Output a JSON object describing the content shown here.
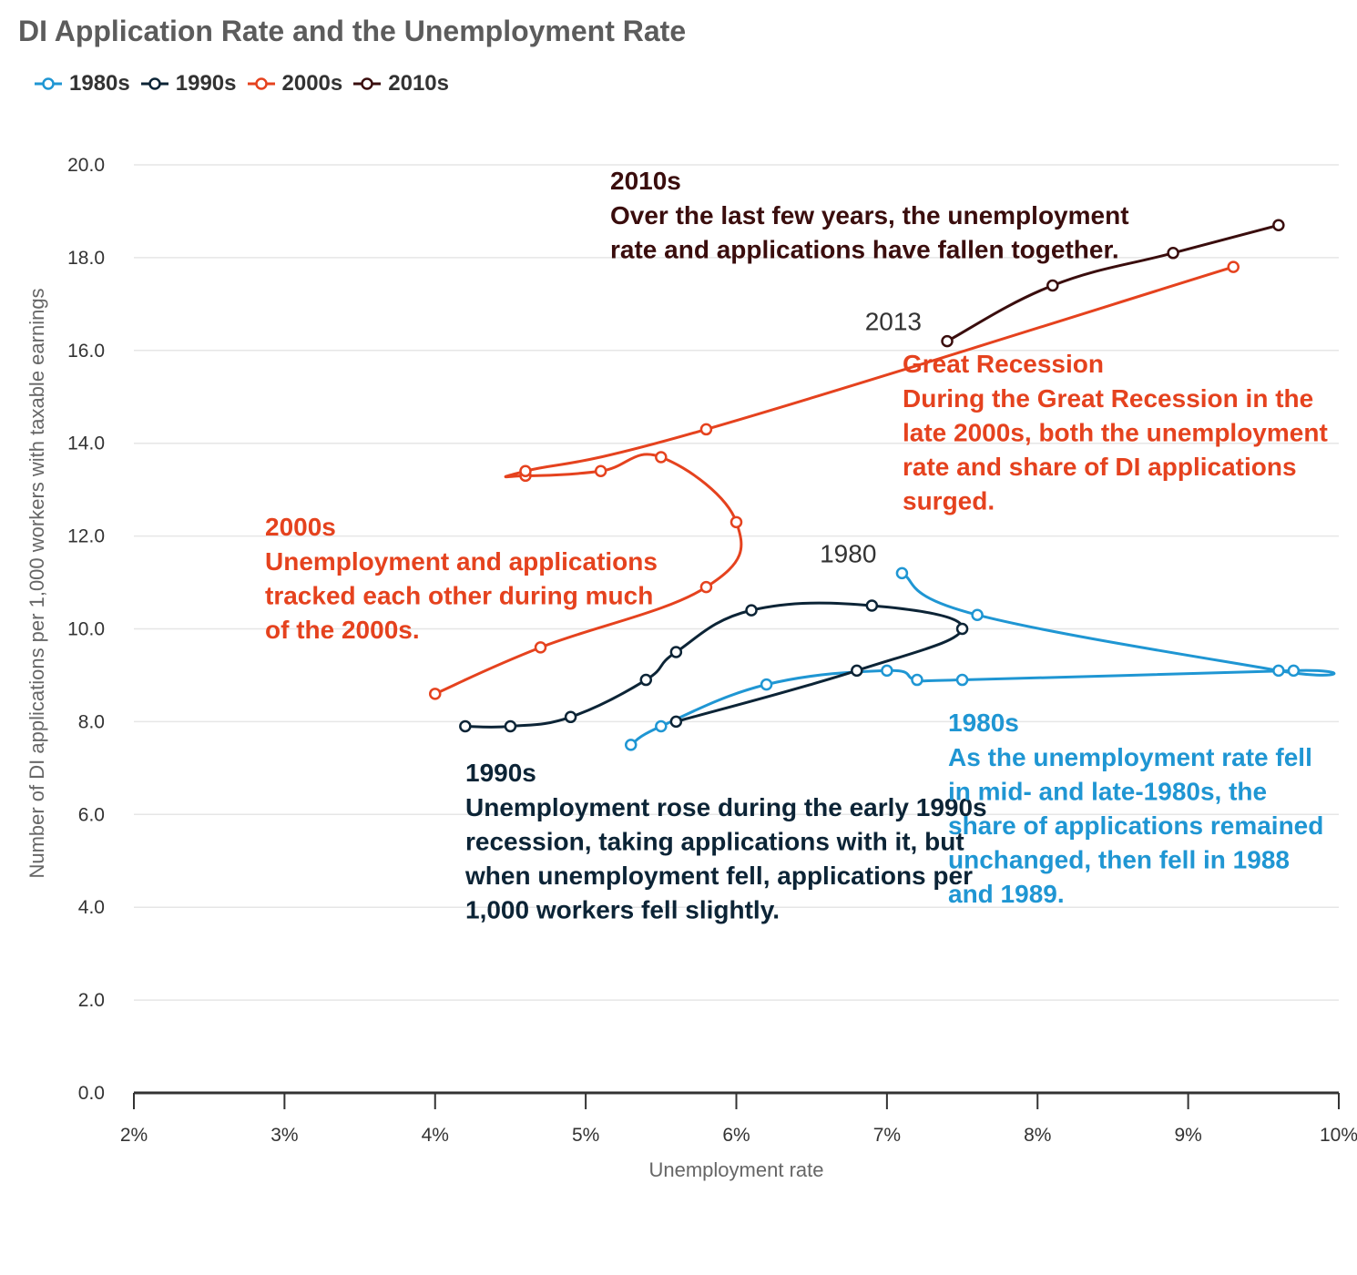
{
  "title": "DI Application Rate and the Unemployment Rate",
  "legend": [
    {
      "label": "1980s",
      "color": "#1f96d3"
    },
    {
      "label": "1990s",
      "color": "#0c2436"
    },
    {
      "label": "2000s",
      "color": "#e5421e"
    },
    {
      "label": "2010s",
      "color": "#3a0d0d"
    }
  ],
  "chart_data": {
    "type": "line",
    "xlabel": "Unemployment rate",
    "ylabel": "Number of DI applications per 1,000 workers with taxable earnings",
    "xlim": [
      2,
      10
    ],
    "ylim": [
      0,
      20
    ],
    "x_ticks": [
      "2%",
      "3%",
      "4%",
      "5%",
      "6%",
      "7%",
      "8%",
      "9%",
      "10%"
    ],
    "y_ticks": [
      "0.0",
      "2.0",
      "4.0",
      "6.0",
      "8.0",
      "10.0",
      "12.0",
      "14.0",
      "16.0",
      "18.0",
      "20.0"
    ],
    "grid": true,
    "legend_position": "top-left",
    "series": [
      {
        "name": "1980s",
        "color": "#1f96d3",
        "x": [
          7.1,
          7.6,
          9.6,
          9.7,
          7.5,
          7.2,
          7.0,
          6.2,
          5.5,
          5.3
        ],
        "y": [
          11.2,
          10.3,
          9.1,
          9.1,
          8.9,
          8.9,
          9.1,
          8.8,
          7.9,
          7.5
        ]
      },
      {
        "name": "1990s",
        "color": "#0c2436",
        "x": [
          5.6,
          6.8,
          7.5,
          6.9,
          6.1,
          5.6,
          5.4,
          4.9,
          4.5,
          4.2
        ],
        "y": [
          8.0,
          9.1,
          10.0,
          10.5,
          10.4,
          9.5,
          8.9,
          8.1,
          7.9,
          7.9
        ]
      },
      {
        "name": "2000s",
        "color": "#e5421e",
        "x": [
          4.0,
          4.7,
          5.8,
          6.0,
          5.5,
          5.1,
          4.6,
          4.6,
          5.8,
          9.3
        ],
        "y": [
          8.6,
          9.6,
          10.9,
          12.3,
          13.7,
          13.4,
          13.3,
          13.4,
          14.3,
          17.8
        ]
      },
      {
        "name": "2010s",
        "color": "#3a0d0d",
        "x": [
          9.6,
          8.9,
          8.1,
          7.4
        ],
        "y": [
          18.7,
          18.1,
          17.4,
          16.2
        ]
      }
    ],
    "point_labels": [
      {
        "text": "1980",
        "x": 7.1,
        "y": 11.2
      },
      {
        "text": "2013",
        "x": 7.4,
        "y": 16.2
      }
    ],
    "annotations": [
      {
        "color": "#3a0d0d",
        "title": "2010s",
        "lines": [
          "Over the last few years, the unemployment",
          "rate and applications have fallen together."
        ]
      },
      {
        "color": "#e5421e",
        "title": "Great Recession",
        "lines": [
          "During the Great Recession in the",
          "late 2000s, both the unemployment",
          "rate and share of DI applications",
          "surged."
        ]
      },
      {
        "color": "#e5421e",
        "title": "2000s",
        "lines": [
          "Unemployment and applications",
          "tracked each other during much",
          "of the 2000s."
        ]
      },
      {
        "color": "#0c2436",
        "title": "1990s",
        "lines": [
          "Unemployment rose during the early 1990s",
          "recession, taking applications with it, but",
          "when unemployment fell, applications per",
          "1,000 workers fell slightly."
        ]
      },
      {
        "color": "#1f96d3",
        "title": "1980s",
        "lines": [
          "As the unemployment rate fell",
          "in mid- and late-1980s, the",
          "share of applications remained",
          "unchanged, then fell in 1988",
          "and 1989."
        ]
      }
    ]
  }
}
